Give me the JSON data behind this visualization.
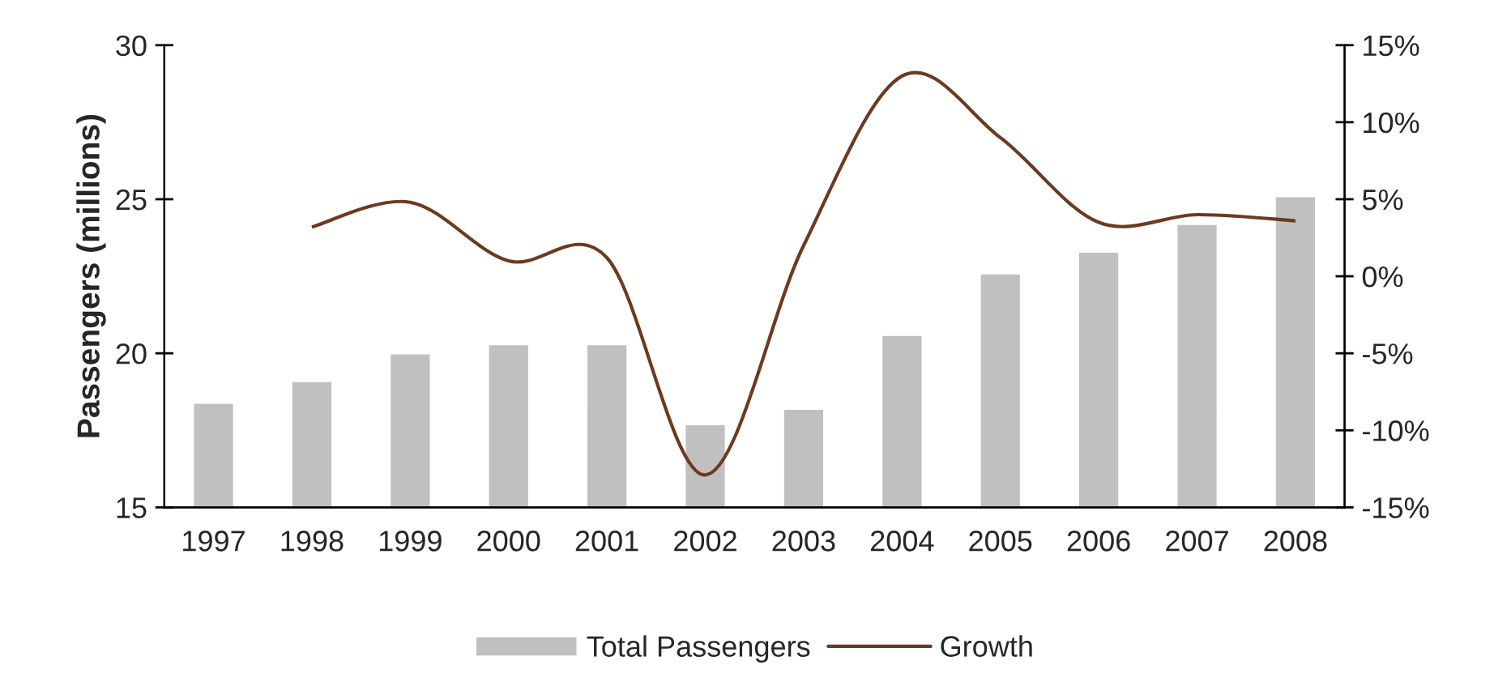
{
  "chart_data": {
    "type": "bar",
    "ylabel": "Passengers (millions)",
    "categories": [
      "1997",
      "1998",
      "1999",
      "2000",
      "2001",
      "2002",
      "2003",
      "2004",
      "2005",
      "2006",
      "2007",
      "2008"
    ],
    "series": [
      {
        "name": "Total Passengers",
        "color": "#c0c0c0",
        "values": [
          18.4,
          19.1,
          20.0,
          20.3,
          20.3,
          17.7,
          18.2,
          20.6,
          22.6,
          23.3,
          24.2,
          25.1
        ]
      },
      {
        "name": "Growth",
        "type": "line",
        "axis": "y2",
        "color": "#6b3a1f",
        "values": [
          null,
          3.2,
          4.8,
          1.0,
          1.2,
          -12.9,
          2.0,
          13.0,
          9.0,
          3.5,
          4.0,
          3.6
        ]
      }
    ],
    "ylim": [
      15,
      30
    ],
    "yticks": [
      15,
      20,
      25,
      30
    ],
    "y2lim": [
      -15,
      15
    ],
    "y2ticks": [
      {
        "value": -15,
        "label": "-15%"
      },
      {
        "value": -10,
        "label": "-10%"
      },
      {
        "value": -5,
        "label": "-5%"
      },
      {
        "value": 0,
        "label": "0%"
      },
      {
        "value": 5,
        "label": "5%"
      },
      {
        "value": 10,
        "label": "10%"
      },
      {
        "value": 15,
        "label": "15%"
      }
    ],
    "grid": false,
    "legend": "bottom",
    "marker": "none",
    "line_style": "solid"
  }
}
